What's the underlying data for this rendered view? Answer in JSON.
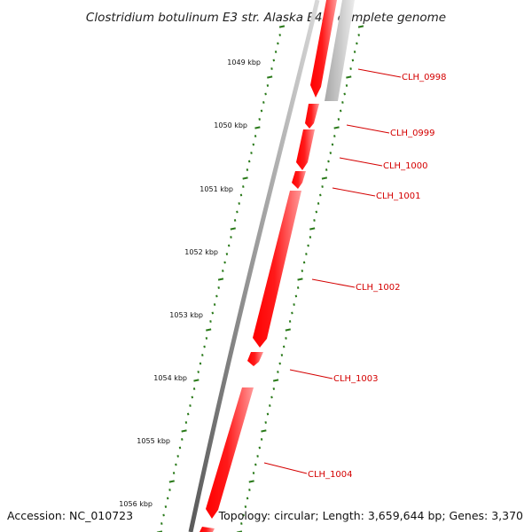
{
  "title": "Clostridium botulinum E3 str. Alaska E43, complete genome",
  "footer": {
    "accession": "Accession: NC_010723",
    "summary": "Topology: circular; Length: 3,659,644 bp; Genes: 3,370"
  },
  "colors": {
    "backbone": "#808080",
    "gene_forward": "#ff0000",
    "gene_pseudo": "#bdbdbd",
    "tick": "#2a7a1a",
    "label": "#d40000"
  },
  "kbp_labels": [
    "1049 kbp",
    "1050 kbp",
    "1051 kbp",
    "1052 kbp",
    "1053 kbp",
    "1054 kbp",
    "1055 kbp",
    "1056 kbp"
  ],
  "genes": [
    "CLH_0998",
    "CLH_0999",
    "CLH_1000",
    "CLH_1001",
    "CLH_1002",
    "CLH_1003",
    "CLH_1004"
  ]
}
